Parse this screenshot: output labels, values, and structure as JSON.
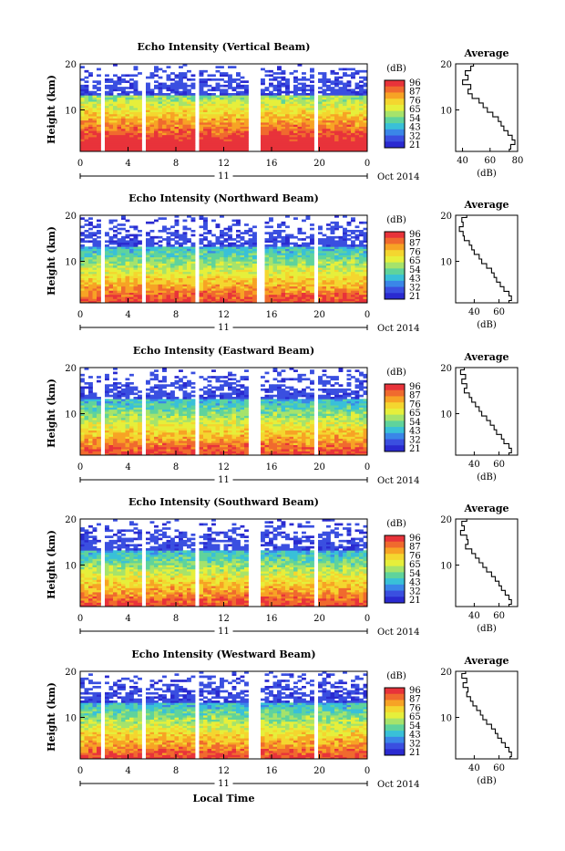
{
  "colorbar": {
    "unit_label": "(dB)",
    "ticks": [
      "96",
      "87",
      "76",
      "65",
      "54",
      "43",
      "32",
      "21"
    ],
    "colors": [
      "#e8333a",
      "#f06a2e",
      "#f7a325",
      "#f4d62f",
      "#e6ef3b",
      "#a6e36b",
      "#5fd39c",
      "#39c0d8",
      "#3a86e8",
      "#3a4fe0",
      "#2a2ad0"
    ]
  },
  "common": {
    "height_label": "Height (km)",
    "y_ticks": [
      "20",
      "10"
    ],
    "x_ticks": [
      "0",
      "4",
      "8",
      "12",
      "16",
      "20",
      "0"
    ],
    "day_label": "11",
    "date_label": "Oct 2014",
    "x_axis_title": "Local Time",
    "average_title": "Average",
    "average_xlabel": "(dB)"
  },
  "chart_data": [
    {
      "type": "heatmap",
      "title": "Echo Intensity (Vertical Beam)",
      "x_range_hours": [
        0,
        24
      ],
      "y_range_km": [
        1,
        20
      ],
      "data_gaps_hours": [
        [
          1.6,
          1.9
        ],
        [
          5.3,
          5.6
        ],
        [
          9.6,
          9.9
        ],
        [
          14.2,
          15.0
        ],
        [
          19.6,
          19.9
        ]
      ],
      "average_profile": {
        "x_ticks": [
          "40",
          "60",
          "80"
        ],
        "xlim": [
          35,
          80
        ],
        "points": [
          [
            48,
            20
          ],
          [
            46,
            19
          ],
          [
            42,
            18
          ],
          [
            44,
            17
          ],
          [
            40,
            16
          ],
          [
            46,
            15
          ],
          [
            44,
            14
          ],
          [
            47,
            13
          ],
          [
            52,
            12
          ],
          [
            55,
            11
          ],
          [
            58,
            10
          ],
          [
            62,
            9
          ],
          [
            66,
            8
          ],
          [
            68,
            7
          ],
          [
            70,
            6
          ],
          [
            73,
            5
          ],
          [
            76,
            4
          ],
          [
            78,
            3
          ],
          [
            75,
            2
          ],
          [
            74,
            1
          ]
        ]
      }
    },
    {
      "type": "heatmap",
      "title": "Echo Intensity (Northward Beam)",
      "x_range_hours": [
        0,
        24
      ],
      "y_range_km": [
        1,
        20
      ],
      "data_gaps_hours": [
        [
          1.6,
          1.9
        ],
        [
          5.3,
          5.6
        ],
        [
          9.6,
          9.9
        ],
        [
          14.6,
          15.4
        ],
        [
          19.6,
          19.9
        ]
      ],
      "average_profile": {
        "x_ticks": [
          "40",
          "60"
        ],
        "xlim": [
          25,
          75
        ],
        "points": [
          [
            34,
            20
          ],
          [
            30,
            19
          ],
          [
            31,
            18
          ],
          [
            28,
            17
          ],
          [
            31,
            16
          ],
          [
            32,
            15
          ],
          [
            36,
            14
          ],
          [
            38,
            13
          ],
          [
            40,
            12
          ],
          [
            44,
            11
          ],
          [
            46,
            10
          ],
          [
            50,
            9
          ],
          [
            54,
            8
          ],
          [
            56,
            7
          ],
          [
            58,
            6
          ],
          [
            61,
            5
          ],
          [
            64,
            4
          ],
          [
            68,
            3
          ],
          [
            70,
            2
          ],
          [
            68,
            1
          ]
        ]
      }
    },
    {
      "type": "heatmap",
      "title": "Echo Intensity (Eastward Beam)",
      "x_range_hours": [
        0,
        24
      ],
      "y_range_km": [
        1,
        20
      ],
      "data_gaps_hours": [
        [
          1.6,
          1.9
        ],
        [
          5.3,
          5.6
        ],
        [
          9.6,
          9.9
        ],
        [
          14.2,
          15.0
        ],
        [
          19.6,
          19.9
        ]
      ],
      "average_profile": {
        "x_ticks": [
          "40",
          "60"
        ],
        "xlim": [
          25,
          75
        ],
        "points": [
          [
            32,
            20
          ],
          [
            29,
            19
          ],
          [
            33,
            18
          ],
          [
            30,
            17
          ],
          [
            34,
            16
          ],
          [
            32,
            15
          ],
          [
            36,
            14
          ],
          [
            38,
            13
          ],
          [
            41,
            12
          ],
          [
            44,
            11
          ],
          [
            46,
            10
          ],
          [
            50,
            9
          ],
          [
            53,
            8
          ],
          [
            56,
            7
          ],
          [
            58,
            6
          ],
          [
            62,
            5
          ],
          [
            64,
            4
          ],
          [
            68,
            3
          ],
          [
            70,
            2
          ],
          [
            68,
            1
          ]
        ]
      }
    },
    {
      "type": "heatmap",
      "title": "Echo Intensity (Southward Beam)",
      "x_range_hours": [
        0,
        24
      ],
      "y_range_km": [
        1,
        20
      ],
      "data_gaps_hours": [
        [
          1.6,
          1.9
        ],
        [
          5.3,
          5.6
        ],
        [
          9.6,
          9.9
        ],
        [
          14.2,
          15.0
        ],
        [
          19.6,
          19.9
        ]
      ],
      "average_profile": {
        "x_ticks": [
          "40",
          "60"
        ],
        "xlim": [
          25,
          75
        ],
        "points": [
          [
            34,
            20
          ],
          [
            30,
            19
          ],
          [
            32,
            18
          ],
          [
            29,
            17
          ],
          [
            34,
            16
          ],
          [
            35,
            15
          ],
          [
            33,
            14
          ],
          [
            38,
            13
          ],
          [
            41,
            12
          ],
          [
            44,
            11
          ],
          [
            47,
            10
          ],
          [
            50,
            9
          ],
          [
            54,
            8
          ],
          [
            57,
            7
          ],
          [
            60,
            6
          ],
          [
            62,
            5
          ],
          [
            65,
            4
          ],
          [
            68,
            3
          ],
          [
            70,
            2
          ],
          [
            68,
            1
          ]
        ]
      }
    },
    {
      "type": "heatmap",
      "title": "Echo Intensity (Westward Beam)",
      "x_range_hours": [
        0,
        24
      ],
      "y_range_km": [
        1,
        20
      ],
      "data_gaps_hours": [
        [
          1.6,
          1.9
        ],
        [
          5.3,
          5.6
        ],
        [
          9.6,
          9.9
        ],
        [
          14.2,
          15.0
        ],
        [
          19.6,
          19.9
        ]
      ],
      "average_profile": {
        "x_ticks": [
          "40",
          "60"
        ],
        "xlim": [
          25,
          75
        ],
        "points": [
          [
            33,
            20
          ],
          [
            30,
            19
          ],
          [
            34,
            18
          ],
          [
            31,
            17
          ],
          [
            35,
            16
          ],
          [
            34,
            15
          ],
          [
            37,
            14
          ],
          [
            39,
            13
          ],
          [
            42,
            12
          ],
          [
            45,
            11
          ],
          [
            47,
            10
          ],
          [
            50,
            9
          ],
          [
            54,
            8
          ],
          [
            57,
            7
          ],
          [
            59,
            6
          ],
          [
            62,
            5
          ],
          [
            65,
            4
          ],
          [
            68,
            3
          ],
          [
            70,
            2
          ],
          [
            69,
            1
          ]
        ]
      }
    }
  ]
}
